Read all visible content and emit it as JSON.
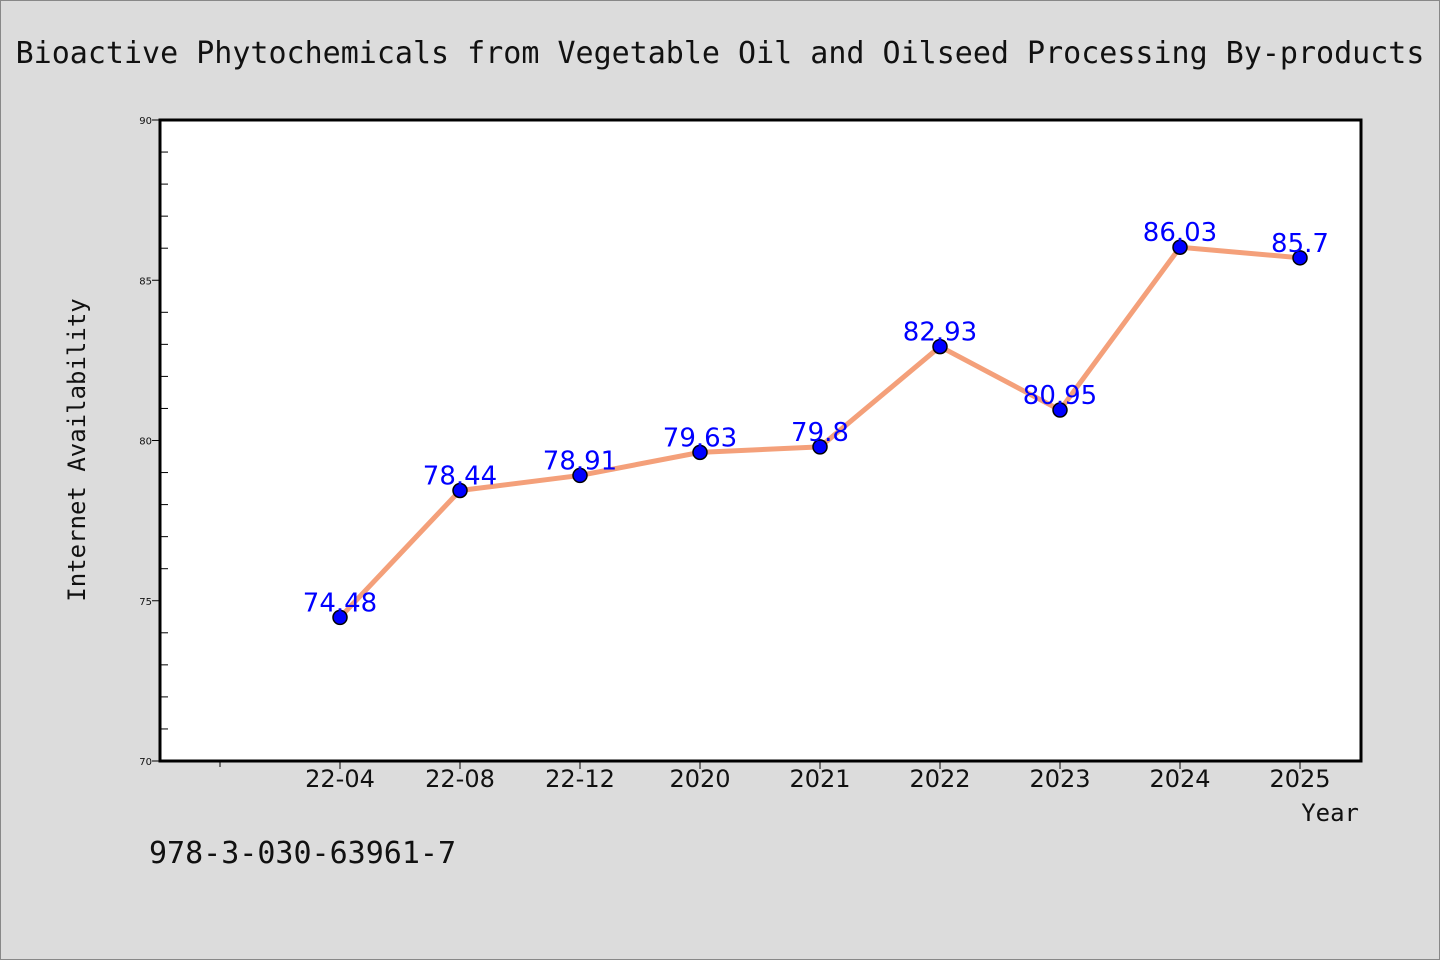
{
  "chart_data": {
    "type": "line",
    "title": "Bioactive Phytochemicals from Vegetable Oil and Oilseed Processing By-products",
    "xlabel": "Year",
    "ylabel": "Internet Availability",
    "categories": [
      "22-04",
      "22-08",
      "22-12",
      "2020",
      "2021",
      "2022",
      "2023",
      "2024",
      "2025"
    ],
    "series": [
      {
        "values": [
          74.48,
          78.44,
          78.91,
          79.63,
          79.8,
          82.93,
          80.95,
          86.03,
          85.7
        ],
        "labels": [
          "74.48",
          "78.44",
          "78.91",
          "79.63",
          "79.8",
          "82.93",
          "80.95",
          "86.03",
          "85.7"
        ]
      }
    ],
    "ylim": [
      70,
      90
    ],
    "yticks": [
      70,
      75,
      80,
      85,
      90
    ],
    "ytick_labels": [
      "70",
      "75",
      "80",
      "85",
      "90"
    ],
    "grid": false,
    "legend": "none",
    "colors": {
      "line": "#f4a07a",
      "marker": "#0000ff",
      "data_label": "#0000ff",
      "background": "#dcdcdc",
      "plot_background": "#ffffff"
    }
  },
  "footnote": "978-3-030-63961-7"
}
